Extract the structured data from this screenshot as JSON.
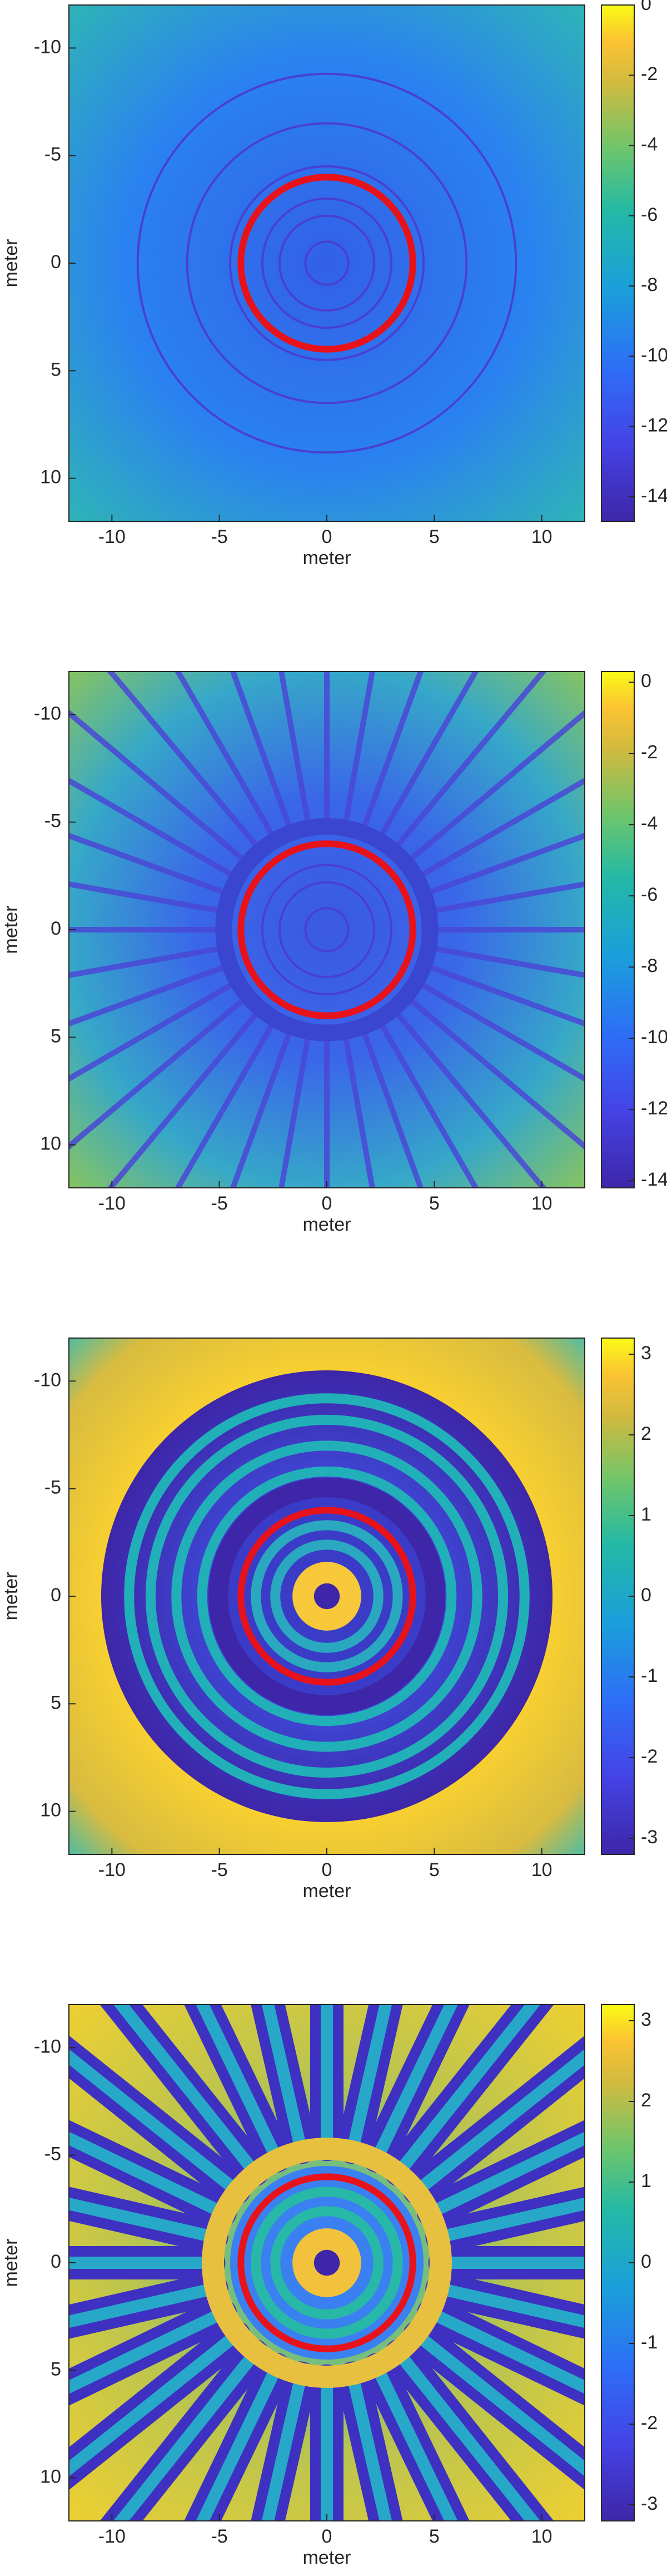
{
  "chart_data": [
    {
      "type": "heatmap",
      "xlabel": "meter",
      "ylabel": "meter",
      "xlim": [
        -12,
        12
      ],
      "ylim": [
        -12,
        12
      ],
      "y_reversed": true,
      "xticks": [
        -10,
        -5,
        0,
        5,
        10
      ],
      "yticks": [
        -10,
        -5,
        0,
        5,
        10
      ],
      "colorbar": {
        "lim": [
          -14.7,
          0
        ],
        "ticks": [
          0,
          -2,
          -4,
          -6,
          -8,
          -10,
          -12,
          -14
        ]
      },
      "overlay_circle": {
        "center": [
          0,
          0
        ],
        "radius": 4,
        "color": "#e8121b"
      }
    },
    {
      "type": "heatmap",
      "xlabel": "meter",
      "ylabel": "meter",
      "xlim": [
        -12,
        12
      ],
      "ylim": [
        -12,
        12
      ],
      "y_reversed": true,
      "xticks": [
        -10,
        -5,
        0,
        5,
        10
      ],
      "yticks": [
        -10,
        -5,
        0,
        5,
        10
      ],
      "colorbar": {
        "lim": [
          -14.2,
          0.3
        ],
        "ticks": [
          0,
          -2,
          -4,
          -6,
          -8,
          -10,
          -12,
          -14
        ]
      },
      "overlay_circle": {
        "center": [
          0,
          0
        ],
        "radius": 4,
        "color": "#e8121b"
      }
    },
    {
      "type": "heatmap",
      "xlabel": "meter",
      "ylabel": "meter",
      "xlim": [
        -12,
        12
      ],
      "ylim": [
        -12,
        12
      ],
      "y_reversed": true,
      "xticks": [
        -10,
        -5,
        0,
        5,
        10
      ],
      "yticks": [
        -10,
        -5,
        0,
        5,
        10
      ],
      "colorbar": {
        "lim": [
          -3.2,
          3.2
        ],
        "ticks": [
          3,
          2,
          1,
          0,
          -1,
          -2,
          -3
        ]
      },
      "overlay_circle": {
        "center": [
          0,
          0
        ],
        "radius": 4,
        "color": "#e8121b"
      }
    },
    {
      "type": "heatmap",
      "xlabel": "meter",
      "ylabel": "meter",
      "xlim": [
        -12,
        12
      ],
      "ylim": [
        -12,
        12
      ],
      "y_reversed": true,
      "xticks": [
        -10,
        -5,
        0,
        5,
        10
      ],
      "yticks": [
        -10,
        -5,
        0,
        5,
        10
      ],
      "colorbar": {
        "lim": [
          -3.2,
          3.2
        ],
        "ticks": [
          3,
          2,
          1,
          0,
          -1,
          -2,
          -3
        ]
      },
      "overlay_circle": {
        "center": [
          0,
          0
        ],
        "radius": 4,
        "color": "#e8121b"
      }
    }
  ]
}
